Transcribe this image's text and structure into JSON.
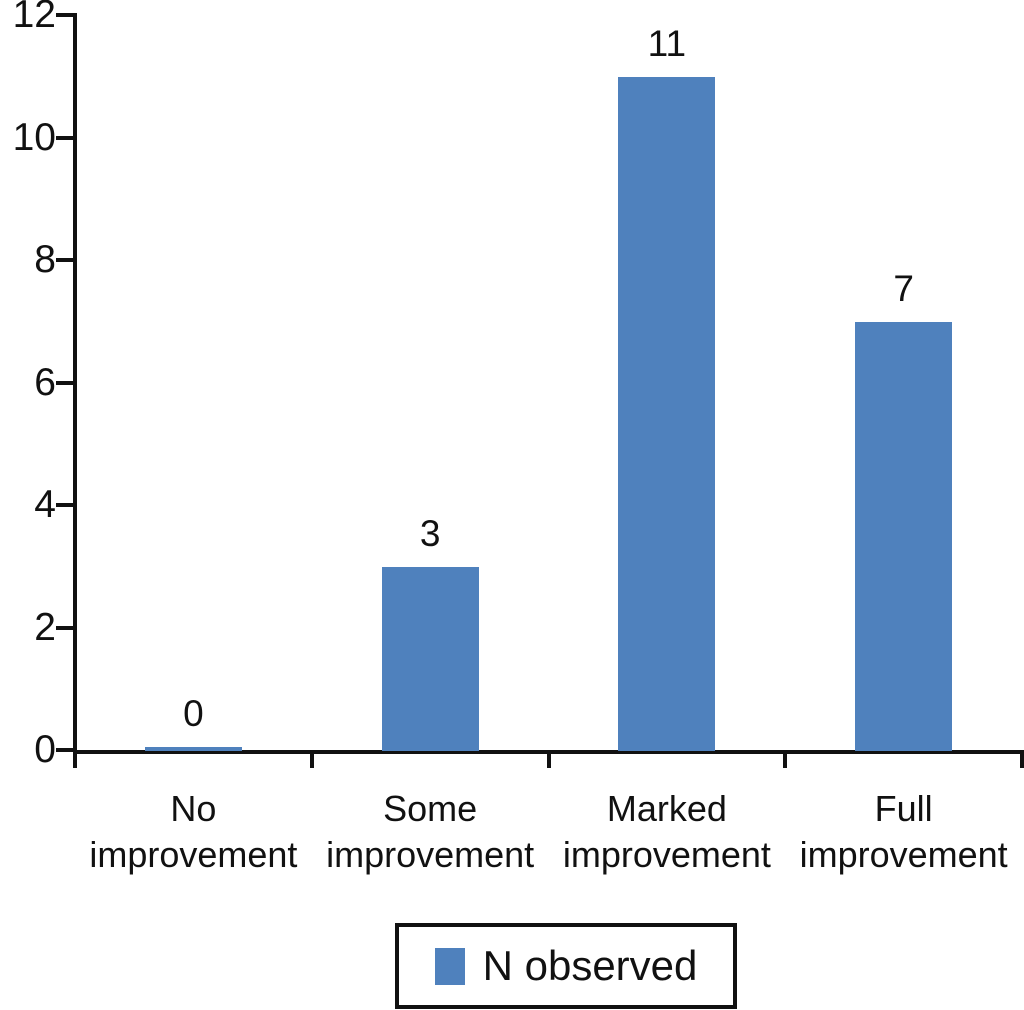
{
  "chart_data": {
    "type": "bar",
    "categories": [
      "No improvement",
      "Some improvement",
      "Marked improvement",
      "Full improvement"
    ],
    "values": [
      0,
      3,
      11,
      7
    ],
    "data_labels": [
      "0",
      "3",
      "11",
      "7"
    ],
    "yticks": [
      "0",
      "2",
      "4",
      "6",
      "8",
      "10",
      "12"
    ],
    "ylim": [
      0,
      12
    ],
    "title": "",
    "xlabel": "",
    "ylabel": "",
    "grid": false,
    "legend": {
      "label": "N observed",
      "position": "bottom",
      "boxed": true
    },
    "bar_color": "#4f81bd",
    "axis_color": "#111111",
    "background_color": "#ffffff"
  }
}
